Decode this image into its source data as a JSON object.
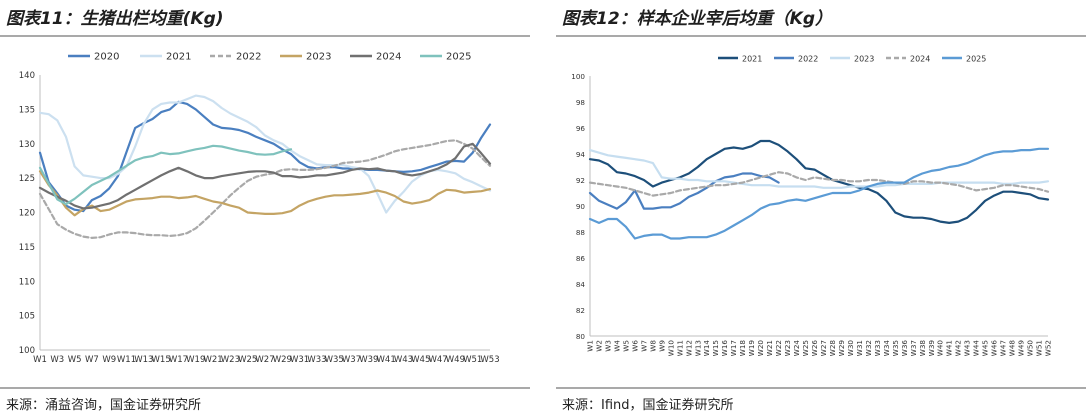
{
  "panels": [
    {
      "title": "图表11：生猪出栏均重(Kg)",
      "source": "来源：涌益咨询，国金证券研究所"
    },
    {
      "title": "图表12：样本企业宰后均重（Kg）",
      "source": "来源：Ifind，国金证券研究所"
    }
  ],
  "chart_data": [
    {
      "type": "line",
      "title": "",
      "xlabel": "",
      "ylabel": "",
      "ylim": [
        100,
        140
      ],
      "yticks": [
        100,
        105,
        110,
        115,
        120,
        125,
        130,
        135,
        140
      ],
      "grid": false,
      "legend": "top",
      "x": [
        "W1",
        "W2",
        "W3",
        "W4",
        "W5",
        "W6",
        "W7",
        "W8",
        "W9",
        "W10",
        "W11",
        "W12",
        "W13",
        "W14",
        "W15",
        "W16",
        "W17",
        "W18",
        "W19",
        "W20",
        "W21",
        "W22",
        "W23",
        "W24",
        "W25",
        "W26",
        "W27",
        "W28",
        "W29",
        "W30",
        "W31",
        "W32",
        "W33",
        "W34",
        "W35",
        "W36",
        "W37",
        "W38",
        "W39",
        "W40",
        "W41",
        "W42",
        "W43",
        "W44",
        "W45",
        "W46",
        "W47",
        "W48",
        "W49",
        "W50",
        "W51",
        "W52",
        "W53"
      ],
      "xtick_labels": [
        "W1",
        "W3",
        "W5",
        "W7",
        "W9",
        "W11",
        "W13",
        "W15",
        "W17",
        "W19",
        "W21",
        "W23",
        "W25",
        "W27",
        "W29",
        "W31",
        "W33",
        "W35",
        "W37",
        "W39",
        "W41",
        "W43",
        "W45",
        "W47",
        "W49",
        "W51",
        "W53"
      ],
      "series": [
        {
          "name": "2020",
          "color": "#4a7fc0",
          "dash": "solid",
          "values": [
            128.7,
            124.4,
            122.8,
            121.0,
            120.4,
            120.2,
            121.8,
            122.4,
            123.5,
            125.3,
            128.8,
            132.3,
            133.0,
            133.6,
            134.6,
            135.0,
            136.1,
            135.8,
            135.0,
            133.9,
            132.8,
            132.3,
            132.2,
            132.0,
            131.6,
            131.0,
            130.5,
            130.0,
            129.2,
            128.5,
            127.3,
            126.6,
            126.4,
            126.6,
            126.6,
            126.4,
            126.4,
            126.3,
            126.2,
            126.2,
            126.1,
            126.0,
            125.9,
            126.0,
            126.2,
            126.6,
            127.0,
            127.4,
            127.5,
            127.4,
            128.7,
            130.9,
            132.8
          ]
        },
        {
          "name": "2021",
          "color": "#cce0f0",
          "dash": "solid",
          "values": [
            134.5,
            134.3,
            133.4,
            131.0,
            126.7,
            125.4,
            125.2,
            125.0,
            125.0,
            125.6,
            126.7,
            129.6,
            132.9,
            135.0,
            135.8,
            136.0,
            136.0,
            136.5,
            137.0,
            136.8,
            136.2,
            135.2,
            134.4,
            133.8,
            133.2,
            132.4,
            131.2,
            130.5,
            130.0,
            129.0,
            128.2,
            127.6,
            127.0,
            126.9,
            126.9,
            126.9,
            126.6,
            126.4,
            125.3,
            122.7,
            120.0,
            121.7,
            123.0,
            124.5,
            125.4,
            126.0,
            126.2,
            126.0,
            125.7,
            124.9,
            124.4,
            123.8,
            123.2
          ]
        },
        {
          "name": "2022",
          "color": "#a9a9a9",
          "dash": "dash",
          "values": [
            122.7,
            120.5,
            118.3,
            117.5,
            116.9,
            116.5,
            116.3,
            116.4,
            116.8,
            117.1,
            117.1,
            117.0,
            116.8,
            116.7,
            116.7,
            116.6,
            116.7,
            117.0,
            117.7,
            118.8,
            120.0,
            121.2,
            122.5,
            123.6,
            124.6,
            125.2,
            125.5,
            125.7,
            126.2,
            126.3,
            126.2,
            126.2,
            126.3,
            126.5,
            126.8,
            127.2,
            127.3,
            127.4,
            127.6,
            128.0,
            128.4,
            128.9,
            129.2,
            129.4,
            129.6,
            129.8,
            130.1,
            130.4,
            130.5,
            130.0,
            129.3,
            128.0,
            126.8
          ]
        },
        {
          "name": "2023",
          "color": "#c4a464",
          "dash": "solid",
          "values": [
            126.0,
            124.0,
            122.5,
            120.7,
            119.6,
            120.5,
            121.0,
            120.2,
            120.4,
            121.0,
            121.6,
            121.9,
            122.0,
            122.1,
            122.3,
            122.3,
            122.1,
            122.2,
            122.4,
            122.0,
            121.6,
            121.4,
            121.0,
            120.7,
            120.0,
            119.9,
            119.8,
            119.8,
            119.9,
            120.2,
            121.0,
            121.6,
            122.0,
            122.3,
            122.5,
            122.5,
            122.6,
            122.7,
            122.9,
            123.2,
            122.9,
            122.4,
            121.6,
            121.3,
            121.5,
            121.8,
            122.7,
            123.3,
            123.2,
            122.9,
            123.0,
            123.1,
            123.4
          ]
        },
        {
          "name": "2024",
          "color": "#707070",
          "dash": "solid",
          "values": [
            123.6,
            122.9,
            122.3,
            121.7,
            121.0,
            120.6,
            120.7,
            121.0,
            121.3,
            121.8,
            122.6,
            123.3,
            124.0,
            124.7,
            125.4,
            126.0,
            126.5,
            126.0,
            125.4,
            125.0,
            125.0,
            125.3,
            125.5,
            125.7,
            125.9,
            126.0,
            126.0,
            125.8,
            125.3,
            125.3,
            125.1,
            125.2,
            125.4,
            125.4,
            125.6,
            125.8,
            126.2,
            126.4,
            126.3,
            126.4,
            126.1,
            126.0,
            125.6,
            125.4,
            125.6,
            126.0,
            126.4,
            127.0,
            127.9,
            129.6,
            130.0,
            128.6,
            127.1
          ]
        },
        {
          "name": "2025",
          "color": "#7fc2bd",
          "dash": "solid",
          "values": [
            126.5,
            124.2,
            121.9,
            121.2,
            122.0,
            123.0,
            124.0,
            124.6,
            125.2,
            126.0,
            126.8,
            127.6,
            128.0,
            128.2,
            128.7,
            128.5,
            128.6,
            128.9,
            129.2,
            129.4,
            129.7,
            129.6,
            129.3,
            129.0,
            128.8,
            128.5,
            128.4,
            128.5,
            128.9,
            129.2,
            null,
            null,
            null,
            null,
            null,
            null,
            null,
            null,
            null,
            null,
            null,
            null,
            null,
            null,
            null,
            null,
            null,
            null,
            null,
            null,
            null,
            null,
            null
          ]
        }
      ]
    },
    {
      "type": "line",
      "title": "",
      "xlabel": "",
      "ylabel": "",
      "ylim": [
        80,
        100
      ],
      "yticks": [
        80,
        82,
        84,
        86,
        88,
        90,
        92,
        94,
        96,
        98,
        100
      ],
      "grid": false,
      "legend": "top",
      "x": [
        "W1",
        "W2",
        "W3",
        "W4",
        "W5",
        "W6",
        "W7",
        "W8",
        "W9",
        "W10",
        "W11",
        "W12",
        "W13",
        "W14",
        "W15",
        "W16",
        "W17",
        "W18",
        "W19",
        "W20",
        "W21",
        "W22",
        "W23",
        "W24",
        "W25",
        "W26",
        "W27",
        "W28",
        "W29",
        "W30",
        "W31",
        "W32",
        "W33",
        "W34",
        "W35",
        "W36",
        "W37",
        "W38",
        "W39",
        "W40",
        "W41",
        "W42",
        "W43",
        "W44",
        "W45",
        "W46",
        "W47",
        "W48",
        "W49",
        "W50",
        "W51",
        "W52"
      ],
      "series": [
        {
          "name": "2021",
          "color": "#1d4f7a",
          "dash": "solid",
          "values": [
            93.6,
            93.5,
            93.2,
            92.6,
            92.5,
            92.3,
            92.0,
            91.5,
            91.8,
            92.0,
            92.2,
            92.5,
            93.0,
            93.6,
            94.0,
            94.4,
            94.5,
            94.4,
            94.6,
            95.0,
            95.0,
            94.7,
            94.2,
            93.6,
            92.9,
            92.8,
            92.4,
            92.0,
            91.8,
            91.6,
            91.4,
            91.3,
            91.0,
            90.4,
            89.5,
            89.2,
            89.1,
            89.1,
            89.0,
            88.8,
            88.7,
            88.8,
            89.1,
            89.7,
            90.4,
            90.8,
            91.1,
            91.1,
            91.0,
            90.9,
            90.6,
            90.5
          ]
        },
        {
          "name": "2022",
          "color": "#4a7fc0",
          "dash": "solid",
          "values": [
            91.0,
            90.4,
            90.1,
            89.8,
            90.3,
            91.2,
            89.8,
            89.8,
            89.9,
            89.9,
            90.2,
            90.7,
            91.0,
            91.4,
            91.9,
            92.2,
            92.3,
            92.5,
            92.5,
            92.3,
            92.2,
            91.8,
            null,
            null,
            null,
            null,
            null,
            null,
            null,
            null,
            null,
            null,
            null,
            null,
            null,
            null,
            null,
            null,
            null,
            null,
            null,
            null,
            null,
            null,
            null,
            null,
            null,
            null,
            null,
            null,
            null,
            null
          ]
        },
        {
          "name": "2023",
          "color": "#c6def0",
          "dash": "solid",
          "values": [
            94.3,
            94.1,
            93.9,
            93.8,
            93.7,
            93.6,
            93.5,
            93.3,
            92.2,
            92.1,
            92.1,
            92.0,
            92.0,
            91.9,
            91.9,
            91.9,
            91.8,
            91.7,
            91.6,
            91.6,
            91.6,
            91.5,
            91.5,
            91.5,
            91.5,
            91.5,
            91.4,
            91.4,
            91.4,
            91.5,
            91.5,
            91.5,
            91.5,
            91.6,
            91.6,
            91.7,
            91.7,
            91.7,
            91.7,
            91.8,
            91.8,
            91.8,
            91.8,
            91.8,
            91.8,
            91.8,
            91.7,
            91.7,
            91.8,
            91.8,
            91.8,
            91.9
          ]
        },
        {
          "name": "2024",
          "color": "#a9a9a9",
          "dash": "dash",
          "values": [
            91.8,
            91.7,
            91.6,
            91.5,
            91.4,
            91.2,
            91.0,
            90.8,
            90.9,
            91.0,
            91.2,
            91.3,
            91.4,
            91.5,
            91.6,
            91.6,
            91.7,
            91.8,
            92.0,
            92.2,
            92.4,
            92.6,
            92.5,
            92.2,
            92.0,
            92.2,
            92.1,
            92.0,
            92.0,
            91.9,
            91.9,
            92.0,
            92.0,
            91.9,
            91.8,
            91.7,
            91.9,
            91.9,
            91.8,
            91.8,
            91.7,
            91.6,
            91.4,
            91.2,
            91.3,
            91.4,
            91.6,
            91.6,
            91.5,
            91.4,
            91.3,
            91.1
          ]
        },
        {
          "name": "2025",
          "color": "#5b9bd5",
          "dash": "solid",
          "values": [
            89.0,
            88.7,
            89.0,
            89.0,
            88.4,
            87.5,
            87.7,
            87.8,
            87.8,
            87.5,
            87.5,
            87.6,
            87.6,
            87.6,
            87.8,
            88.1,
            88.5,
            88.9,
            89.3,
            89.8,
            90.1,
            90.2,
            90.4,
            90.5,
            90.4,
            90.6,
            90.8,
            91.0,
            91.0,
            91.0,
            91.2,
            91.5,
            91.7,
            91.8,
            91.8,
            91.8,
            92.2,
            92.5,
            92.7,
            92.8,
            93.0,
            93.1,
            93.3,
            93.6,
            93.9,
            94.1,
            94.2,
            94.2,
            94.3,
            94.3,
            94.4,
            94.4
          ]
        }
      ]
    }
  ]
}
